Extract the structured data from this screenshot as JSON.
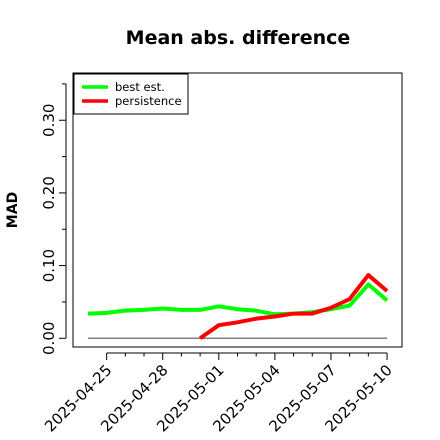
{
  "chart_data": {
    "type": "line",
    "title": "Mean abs. difference",
    "xlabel": "",
    "ylabel": "MAD",
    "x": [
      "2025-04-24",
      "2025-04-25",
      "2025-04-26",
      "2025-04-27",
      "2025-04-28",
      "2025-04-29",
      "2025-04-30",
      "2025-05-01",
      "2025-05-02",
      "2025-05-03",
      "2025-05-04",
      "2025-05-05",
      "2025-05-06",
      "2025-05-07",
      "2025-05-08",
      "2025-05-09",
      "2025-05-10"
    ],
    "xticks": [
      "2025-04-25",
      "2025-04-28",
      "2025-05-01",
      "2025-05-04",
      "2025-05-07",
      "2025-05-10"
    ],
    "yticks": [
      {
        "value": 0.0,
        "label": "0.00"
      },
      {
        "value": 0.1,
        "label": "0.10"
      },
      {
        "value": 0.2,
        "label": "0.20"
      },
      {
        "value": 0.3,
        "label": "0.30"
      }
    ],
    "yminor": [
      0.05,
      0.15,
      0.25,
      0.35
    ],
    "ylim": [
      -0.012,
      0.365
    ],
    "xlim": [
      "2025-04-23.2",
      "2025-05-10.8"
    ],
    "reference_line": 0,
    "grid": false,
    "legend_position": "top-left",
    "series": [
      {
        "name": "best est.",
        "color": "#00ff00",
        "values": [
          0.034,
          0.035,
          0.038,
          0.039,
          0.041,
          0.039,
          0.039,
          0.044,
          0.04,
          0.038,
          0.033,
          0.034,
          0.036,
          0.04,
          0.045,
          0.074,
          0.052
        ]
      },
      {
        "name": "persistence",
        "color": "#ff0000",
        "values": [
          null,
          null,
          null,
          null,
          null,
          null,
          0.0,
          0.018,
          0.022,
          0.027,
          0.03,
          0.034,
          0.034,
          0.042,
          0.054,
          0.087,
          0.065
        ]
      }
    ]
  }
}
